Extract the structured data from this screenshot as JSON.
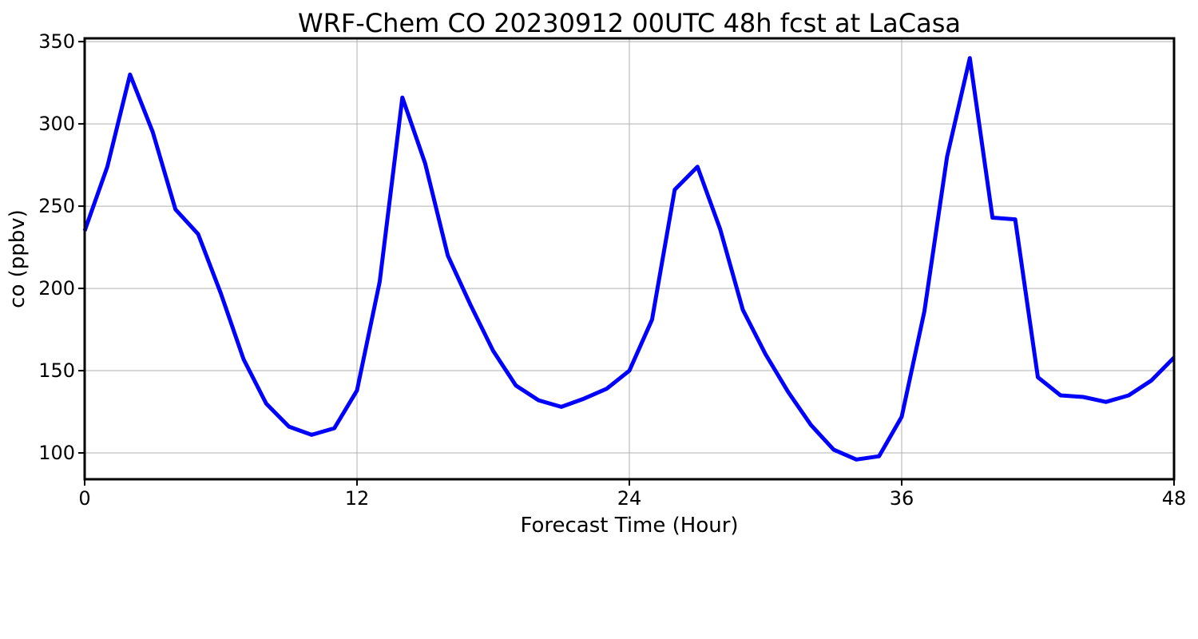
{
  "chart_data": {
    "type": "line",
    "title": "WRF-Chem CO  20230912 00UTC 48h fcst at LaCasa",
    "xlabel": "Forecast Time (Hour)",
    "ylabel": "co  (ppbv)",
    "xlim": [
      0,
      48
    ],
    "ylim": [
      84,
      352
    ],
    "xticks": [
      0,
      12,
      24,
      36,
      48
    ],
    "yticks": [
      100,
      150,
      200,
      250,
      300,
      350
    ],
    "grid": true,
    "line_color": "#0000ff",
    "series": [
      {
        "x": [
          0,
          1,
          2,
          3,
          4,
          5,
          6,
          7,
          8,
          9,
          10,
          11,
          12,
          13,
          14,
          15,
          16,
          17,
          18,
          19,
          20,
          21,
          22,
          23,
          24,
          25,
          26,
          27,
          28,
          29,
          30,
          31,
          32,
          33,
          34,
          35,
          36,
          37,
          38,
          39,
          40,
          41,
          42,
          43,
          44,
          45,
          46,
          47,
          48
        ],
        "values": [
          235,
          274,
          330,
          295,
          248,
          233,
          197,
          157,
          130,
          116,
          111,
          115,
          138,
          204,
          316,
          276,
          220,
          190,
          162,
          141,
          132,
          128,
          133,
          139,
          150,
          181,
          260,
          274,
          236,
          187,
          160,
          137,
          117,
          102,
          96,
          98,
          122,
          186,
          280,
          340,
          243,
          242,
          146,
          135,
          134,
          131,
          135,
          144,
          158
        ]
      }
    ]
  }
}
